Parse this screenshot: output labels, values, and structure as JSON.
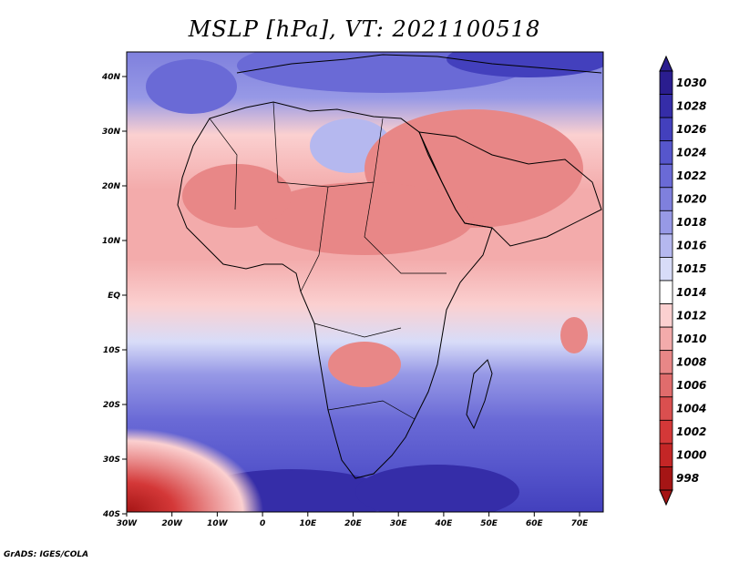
{
  "title": "MSLP [hPa], VT: 2021100518",
  "credit": "GrADS: IGES/COLA",
  "axes": {
    "lat_labels": [
      "40N",
      "30N",
      "20N",
      "10N",
      "EQ",
      "10S",
      "20S",
      "30S",
      "40S"
    ],
    "lon_labels": [
      "30W",
      "20W",
      "10W",
      "0",
      "10E",
      "20E",
      "30E",
      "40E",
      "50E",
      "60E",
      "70E"
    ]
  },
  "colorbar": {
    "levels": [
      "1030",
      "1028",
      "1026",
      "1024",
      "1022",
      "1020",
      "1018",
      "1016",
      "1015",
      "1014",
      "1012",
      "1010",
      "1008",
      "1006",
      "1004",
      "1002",
      "1000",
      "998"
    ],
    "colors": [
      "#2a1d8f",
      "#352da8",
      "#4340bd",
      "#5656cc",
      "#6a6ad6",
      "#7f80dd",
      "#9799e6",
      "#b5b8ef",
      "#d8dcf8",
      "#ffffff",
      "#fbd0d0",
      "#f3abab",
      "#e88787",
      "#e06c6c",
      "#da4f4f",
      "#d43838",
      "#c42626",
      "#a51515"
    ]
  },
  "map": {
    "projection": "lat-lon",
    "lon_range": [
      -30,
      75
    ],
    "lat_range": [
      -40,
      45
    ],
    "field": "mean sea level pressure",
    "units": "hPa"
  }
}
